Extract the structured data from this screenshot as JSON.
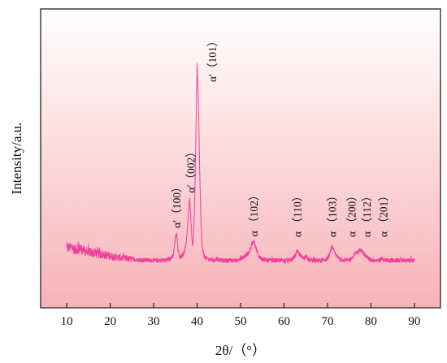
{
  "chart_data": {
    "type": "line",
    "title": "",
    "xlabel": "2θ/（°）",
    "ylabel": "Intensity/a.u.",
    "xlim": [
      4,
      96
    ],
    "xticks": [
      10,
      20,
      30,
      40,
      50,
      60,
      70,
      80,
      90
    ],
    "y_ticks_shown": false,
    "grid": false,
    "legend": "none",
    "colors": {
      "line": "#f0409a",
      "bg_top": "#ffffff",
      "bg_bottom": "#f7b3b8",
      "axis": "#222222"
    },
    "series": [
      {
        "x": [
          10,
          11,
          12,
          13,
          14,
          15,
          16,
          17,
          18,
          19,
          20,
          21,
          22,
          23,
          24,
          25,
          26,
          27,
          28,
          29,
          30,
          31,
          32,
          33,
          34,
          34.5,
          35.0,
          35.3,
          35.6,
          36,
          36.5,
          37,
          37.5,
          38,
          38.3,
          38.6,
          38.9,
          39.2,
          39.5,
          39.8,
          40.0,
          40.3,
          40.6,
          40.9,
          41.2,
          41.6,
          42,
          43,
          44,
          44.5,
          45,
          46,
          47,
          48,
          49,
          50,
          51,
          52,
          52.6,
          53.1,
          53.6,
          54.2,
          55,
          56,
          57,
          58,
          59,
          60,
          61,
          62,
          62.6,
          63.0,
          63.4,
          63.9,
          64.5,
          65.1,
          65.6,
          66.3,
          67,
          68,
          69,
          70,
          70.5,
          71.0,
          71.5,
          72,
          73,
          74,
          75,
          76,
          76.5,
          77.0,
          77.5,
          78.0,
          78.4,
          78.9,
          79.5,
          80,
          81,
          82,
          82.5,
          83,
          84,
          85,
          86,
          87,
          88,
          89,
          90
        ],
        "y": [
          9,
          10,
          8.5,
          9.5,
          8,
          7.6,
          7.2,
          6.8,
          6.4,
          6,
          5.6,
          5.2,
          4.9,
          4.6,
          4.4,
          4.2,
          4.0,
          3.8,
          3.7,
          3.6,
          3.5,
          3.5,
          3.6,
          3.8,
          4.5,
          6,
          14,
          16.5,
          9,
          5,
          5.8,
          7,
          12,
          26,
          33,
          22,
          10,
          15,
          36,
          72,
          96,
          79,
          45,
          20,
          9,
          6,
          4.5,
          3.9,
          3.6,
          4.4,
          3.6,
          3.5,
          3.5,
          3.5,
          3.5,
          4.2,
          5.5,
          7.5,
          11,
          12.5,
          9,
          5.5,
          4.0,
          3.7,
          3.6,
          3.5,
          3.5,
          3.5,
          3.6,
          4.2,
          6,
          7.8,
          6.8,
          5.2,
          4.3,
          5.4,
          4.0,
          3.6,
          3.5,
          3.5,
          3.6,
          4.5,
          6.5,
          10,
          8,
          5.5,
          4.0,
          3.6,
          3.7,
          5.2,
          7.5,
          7.2,
          9,
          8,
          6.5,
          5.6,
          4.4,
          3.8,
          3.6,
          3.6,
          4.5,
          3.8,
          3.6,
          3.5,
          3.5,
          3.5,
          3.5,
          3.5,
          3.5
        ]
      }
    ],
    "annotations": [
      {
        "text": "α′（100）",
        "x": 35.2,
        "peak": 16.5
      },
      {
        "text": "α′（002）",
        "x": 38.5,
        "peak": 33
      },
      {
        "text": "α′（101）",
        "x": 43.5,
        "peak": 96
      },
      {
        "text": "α （102）",
        "x": 53.0,
        "peak": 12.5
      },
      {
        "text": "α （110）",
        "x": 63.0,
        "peak": 7.8
      },
      {
        "text": "α （103）",
        "x": 71.0,
        "peak": 10
      },
      {
        "text": "α （200）",
        "x": 75.5,
        "peak": 7.5
      },
      {
        "text": "α （112）",
        "x": 79.0,
        "peak": 9
      },
      {
        "text": "α （201）",
        "x": 82.8,
        "peak": 4.5
      }
    ]
  }
}
